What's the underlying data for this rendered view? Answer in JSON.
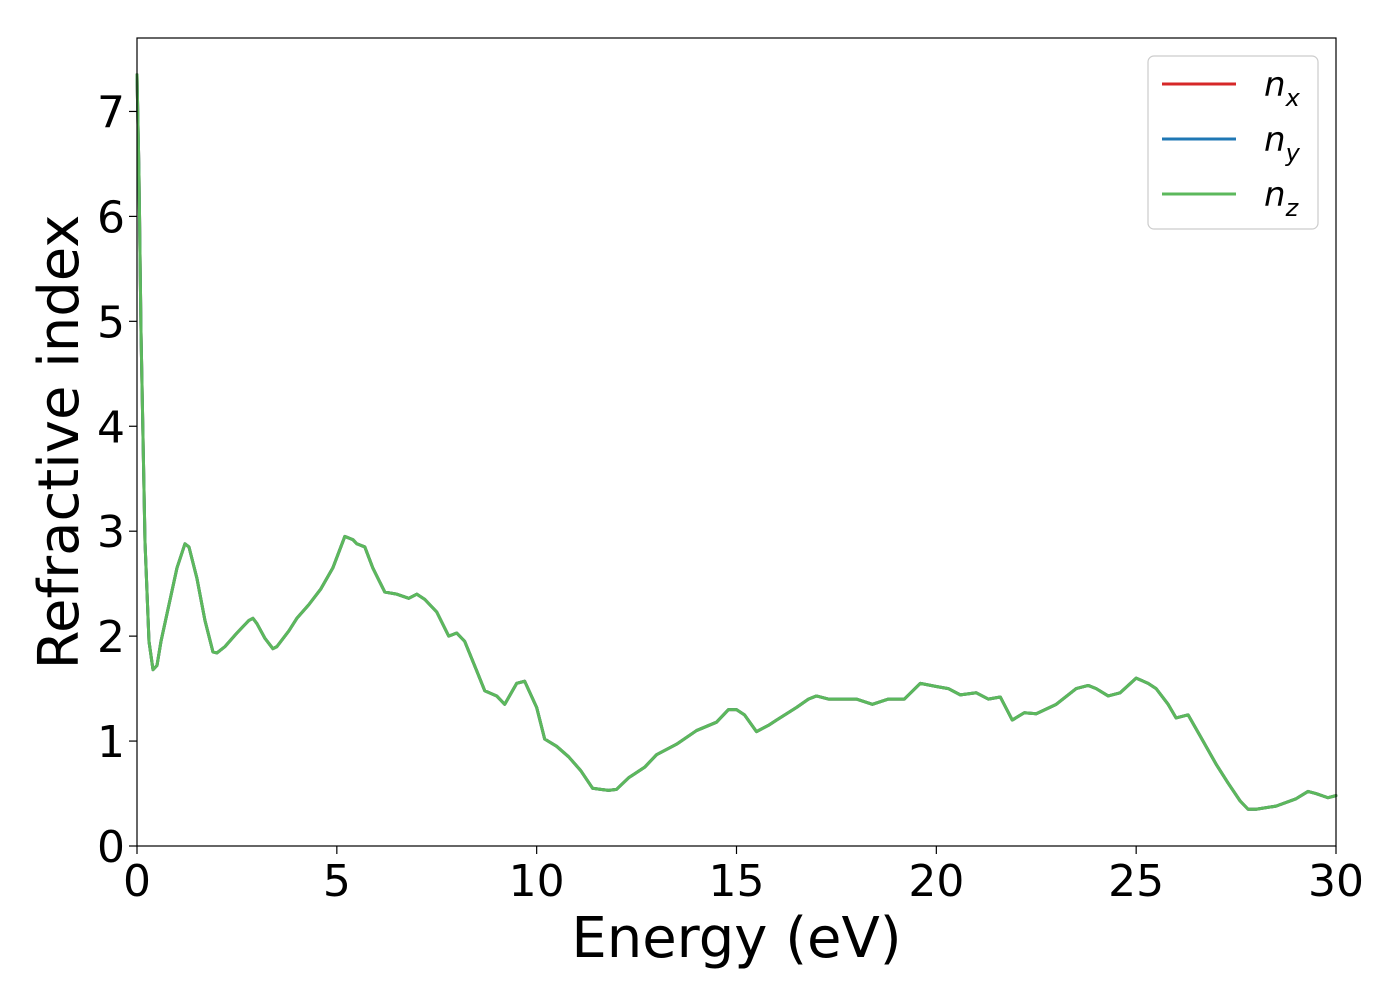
{
  "chart_data": {
    "type": "line",
    "title": "",
    "xlabel": "Energy (eV)",
    "ylabel": "Refractive index",
    "xlim": [
      0,
      30
    ],
    "ylim": [
      0,
      7.7
    ],
    "xticks": [
      0,
      5,
      10,
      15,
      20,
      25,
      30
    ],
    "yticks": [
      0,
      1,
      2,
      3,
      4,
      5,
      6,
      7
    ],
    "grid": false,
    "legend_position": "top-right",
    "x": [
      0,
      0.05,
      0.1,
      0.2,
      0.3,
      0.4,
      0.5,
      0.6,
      0.8,
      1.0,
      1.2,
      1.3,
      1.5,
      1.7,
      1.9,
      2.0,
      2.2,
      2.5,
      2.8,
      2.9,
      3.0,
      3.2,
      3.4,
      3.5,
      3.8,
      4.0,
      4.3,
      4.6,
      4.9,
      5.0,
      5.2,
      5.4,
      5.5,
      5.7,
      5.9,
      6.2,
      6.5,
      6.8,
      7.0,
      7.2,
      7.5,
      7.8,
      8.0,
      8.2,
      8.5,
      8.7,
      9.0,
      9.2,
      9.5,
      9.7,
      10.0,
      10.2,
      10.5,
      10.8,
      11.1,
      11.4,
      11.6,
      11.8,
      12.0,
      12.3,
      12.7,
      13.0,
      13.5,
      14.0,
      14.5,
      14.8,
      15.0,
      15.2,
      15.5,
      15.8,
      16.0,
      16.5,
      16.8,
      17.0,
      17.3,
      17.6,
      18.0,
      18.4,
      18.8,
      19.2,
      19.6,
      20.0,
      20.3,
      20.6,
      21.0,
      21.3,
      21.6,
      21.9,
      22.2,
      22.5,
      23.0,
      23.5,
      23.8,
      24.0,
      24.3,
      24.6,
      25.0,
      25.3,
      25.5,
      25.8,
      26.0,
      26.3,
      26.6,
      27.0,
      27.3,
      27.6,
      27.8,
      28.0,
      28.5,
      29.0,
      29.3,
      29.5,
      29.8,
      30.0
    ],
    "series": [
      {
        "name": "n_x",
        "color": "#d62728",
        "values": [
          7.35,
          6.4,
          4.9,
          2.9,
          1.95,
          1.68,
          1.72,
          1.95,
          2.3,
          2.65,
          2.88,
          2.85,
          2.55,
          2.15,
          1.85,
          1.84,
          1.9,
          2.03,
          2.15,
          2.17,
          2.12,
          1.98,
          1.88,
          1.9,
          2.05,
          2.17,
          2.3,
          2.45,
          2.65,
          2.75,
          2.95,
          2.92,
          2.88,
          2.85,
          2.65,
          2.42,
          2.4,
          2.36,
          2.4,
          2.35,
          2.23,
          2.0,
          2.03,
          1.95,
          1.67,
          1.48,
          1.43,
          1.35,
          1.55,
          1.57,
          1.32,
          1.02,
          0.95,
          0.85,
          0.72,
          0.55,
          0.54,
          0.53,
          0.54,
          0.65,
          0.75,
          0.87,
          0.97,
          1.1,
          1.18,
          1.3,
          1.3,
          1.25,
          1.09,
          1.15,
          1.2,
          1.32,
          1.4,
          1.43,
          1.4,
          1.4,
          1.4,
          1.35,
          1.4,
          1.4,
          1.55,
          1.52,
          1.5,
          1.44,
          1.46,
          1.4,
          1.42,
          1.2,
          1.27,
          1.26,
          1.35,
          1.5,
          1.53,
          1.5,
          1.43,
          1.46,
          1.6,
          1.55,
          1.5,
          1.35,
          1.22,
          1.25,
          1.05,
          0.78,
          0.6,
          0.43,
          0.35,
          0.35,
          0.38,
          0.45,
          0.52,
          0.5,
          0.46,
          0.48
        ]
      },
      {
        "name": "n_y",
        "color": "#1f77b4",
        "values": [
          7.35,
          6.4,
          4.9,
          2.9,
          1.95,
          1.68,
          1.72,
          1.95,
          2.3,
          2.65,
          2.88,
          2.85,
          2.55,
          2.15,
          1.85,
          1.84,
          1.9,
          2.03,
          2.15,
          2.17,
          2.12,
          1.98,
          1.88,
          1.9,
          2.05,
          2.17,
          2.3,
          2.45,
          2.65,
          2.75,
          2.95,
          2.92,
          2.88,
          2.85,
          2.65,
          2.42,
          2.4,
          2.36,
          2.4,
          2.35,
          2.23,
          2.0,
          2.03,
          1.95,
          1.67,
          1.48,
          1.43,
          1.35,
          1.55,
          1.57,
          1.32,
          1.02,
          0.95,
          0.85,
          0.72,
          0.55,
          0.54,
          0.53,
          0.54,
          0.65,
          0.75,
          0.87,
          0.97,
          1.1,
          1.18,
          1.3,
          1.3,
          1.25,
          1.09,
          1.15,
          1.2,
          1.32,
          1.4,
          1.43,
          1.4,
          1.4,
          1.4,
          1.35,
          1.4,
          1.4,
          1.55,
          1.52,
          1.5,
          1.44,
          1.46,
          1.4,
          1.42,
          1.2,
          1.27,
          1.26,
          1.35,
          1.5,
          1.53,
          1.5,
          1.43,
          1.46,
          1.6,
          1.55,
          1.5,
          1.35,
          1.22,
          1.25,
          1.05,
          0.78,
          0.6,
          0.43,
          0.35,
          0.35,
          0.38,
          0.45,
          0.52,
          0.5,
          0.46,
          0.48
        ]
      },
      {
        "name": "n_z",
        "color": "#5cb85c",
        "values": [
          7.35,
          6.4,
          4.9,
          2.9,
          1.95,
          1.68,
          1.72,
          1.95,
          2.3,
          2.65,
          2.88,
          2.85,
          2.55,
          2.15,
          1.85,
          1.84,
          1.9,
          2.03,
          2.15,
          2.17,
          2.12,
          1.98,
          1.88,
          1.9,
          2.05,
          2.17,
          2.3,
          2.45,
          2.65,
          2.75,
          2.95,
          2.92,
          2.88,
          2.85,
          2.65,
          2.42,
          2.4,
          2.36,
          2.4,
          2.35,
          2.23,
          2.0,
          2.03,
          1.95,
          1.67,
          1.48,
          1.43,
          1.35,
          1.55,
          1.57,
          1.32,
          1.02,
          0.95,
          0.85,
          0.72,
          0.55,
          0.54,
          0.53,
          0.54,
          0.65,
          0.75,
          0.87,
          0.97,
          1.1,
          1.18,
          1.3,
          1.3,
          1.25,
          1.09,
          1.15,
          1.2,
          1.32,
          1.4,
          1.43,
          1.4,
          1.4,
          1.4,
          1.35,
          1.4,
          1.4,
          1.55,
          1.52,
          1.5,
          1.44,
          1.46,
          1.4,
          1.42,
          1.2,
          1.27,
          1.26,
          1.35,
          1.5,
          1.53,
          1.5,
          1.43,
          1.46,
          1.6,
          1.55,
          1.5,
          1.35,
          1.22,
          1.25,
          1.05,
          0.78,
          0.6,
          0.43,
          0.35,
          0.35,
          0.38,
          0.45,
          0.52,
          0.5,
          0.46,
          0.48
        ]
      }
    ],
    "legend": [
      {
        "base": "n",
        "sub": "x",
        "color": "#d62728"
      },
      {
        "base": "n",
        "sub": "y",
        "color": "#1f77b4"
      },
      {
        "base": "n",
        "sub": "z",
        "color": "#5cb85c"
      }
    ]
  }
}
